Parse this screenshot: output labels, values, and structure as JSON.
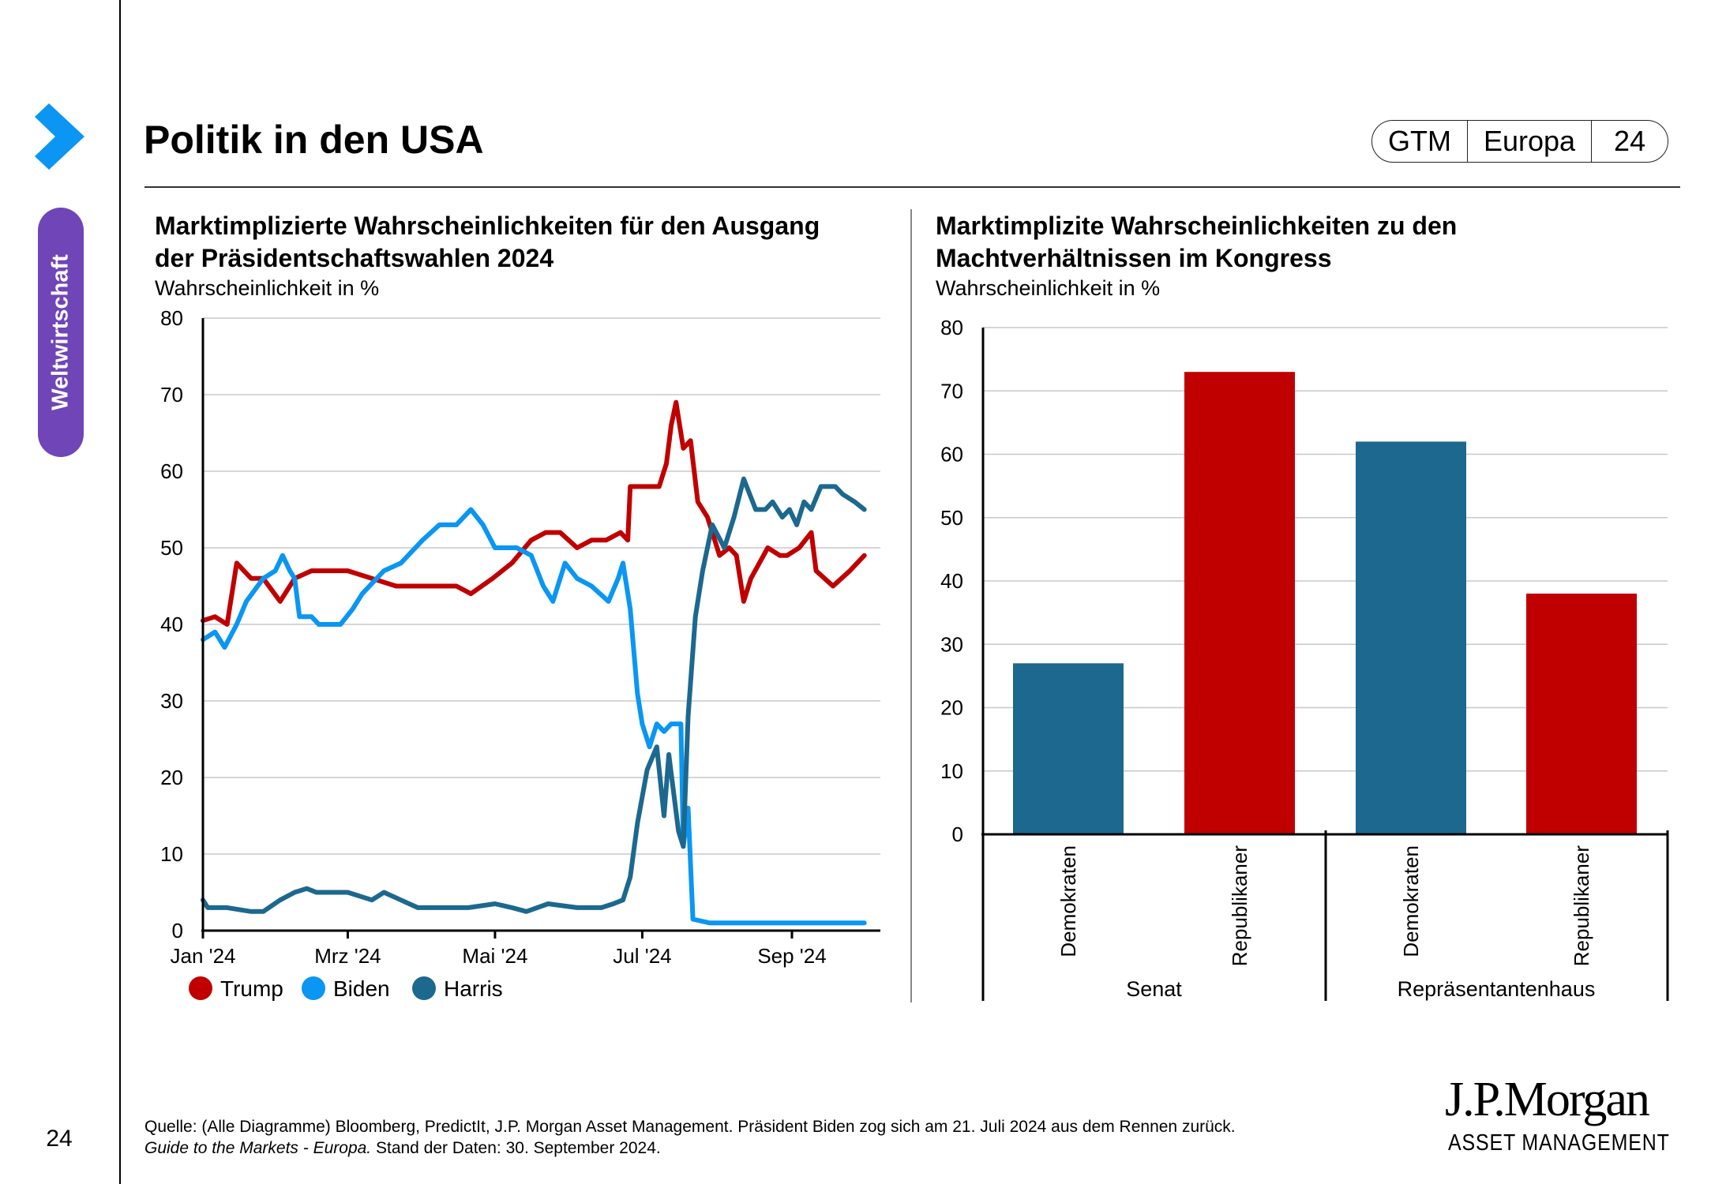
{
  "header": {
    "title": "Politik in den USA",
    "badge": [
      "GTM",
      "Europa",
      "24"
    ]
  },
  "sidebar": {
    "section_label": "Weltwirtschaft",
    "page_number": "24",
    "chevron_color": "#0a96f2",
    "pill_color": "#6f45b8"
  },
  "footer": {
    "source": "Quelle: (Alle Diagramme) Bloomberg, PredictIt, J.P. Morgan Asset Management. Präsident Biden zog sich am 21. Juli 2024 aus dem Rennen zurück.",
    "guide_italic": "Guide to the Markets - Europa.",
    "date_note": " Stand der Daten: 30. September 2024."
  },
  "logo": {
    "name": "J.P.Morgan",
    "sub": "ASSET MANAGEMENT"
  },
  "chart_data": [
    {
      "type": "line",
      "title": "Marktimplizierte Wahrscheinlichkeiten für den Ausgang der Präsidentschaftswahlen 2024",
      "title_lines": [
        "Marktimplizierte Wahrscheinlichkeiten für den Ausgang",
        "der Präsidentschaftswahlen 2024"
      ],
      "ylabel": "Wahrscheinlichkeit in %",
      "xlabel": "",
      "x_unit": "days since 1 Jan 2024",
      "xlim": [
        0,
        280
      ],
      "ylim": [
        0,
        80
      ],
      "yticks": [
        0,
        10,
        20,
        30,
        40,
        50,
        60,
        70,
        80
      ],
      "xticks": [
        {
          "day": 0,
          "label": "Jan '24"
        },
        {
          "day": 60,
          "label": "Mrz '24"
        },
        {
          "day": 121,
          "label": "Mai '24"
        },
        {
          "day": 182,
          "label": "Jul '24"
        },
        {
          "day": 244,
          "label": "Sep '24"
        }
      ],
      "grid": true,
      "legend_position": "bottom-left",
      "series": [
        {
          "name": "Trump",
          "color": "#c00000",
          "x": [
            0,
            5,
            10,
            14,
            20,
            25,
            32,
            38,
            45,
            52,
            60,
            70,
            80,
            90,
            95,
            105,
            111,
            120,
            128,
            136,
            142,
            148,
            155,
            161,
            167,
            173,
            176,
            177,
            183,
            189,
            192,
            194,
            196,
            199,
            202,
            205,
            209,
            214,
            218,
            221,
            224,
            227,
            234,
            239,
            242,
            247,
            252,
            254,
            261,
            268,
            274
          ],
          "y": [
            40.5,
            41,
            40,
            48,
            46,
            46,
            43,
            46,
            47,
            47,
            47,
            46,
            45,
            45,
            45,
            45,
            44,
            46,
            48,
            51,
            52,
            52,
            50,
            51,
            51,
            52,
            51,
            58,
            58,
            58,
            61,
            66,
            69,
            63,
            64,
            56,
            54,
            49,
            50,
            49,
            43,
            46,
            50,
            49,
            49,
            50,
            52,
            47,
            45,
            47,
            49
          ]
        },
        {
          "name": "Biden",
          "color": "#0a96f2",
          "x": [
            0,
            5,
            9,
            14,
            18,
            25,
            30,
            33,
            36,
            38,
            40,
            45,
            48,
            57,
            62,
            66,
            75,
            82,
            91,
            98,
            105,
            111,
            116,
            121,
            126,
            130,
            136,
            141,
            145,
            150,
            155,
            161,
            168,
            172,
            174,
            177,
            180,
            182,
            185,
            188,
            191,
            194,
            198,
            199,
            201,
            203,
            210,
            230,
            250,
            274
          ],
          "y": [
            38,
            39,
            37,
            40,
            43,
            46,
            47,
            49,
            47,
            46,
            41,
            41,
            40,
            40,
            42,
            44,
            47,
            48,
            51,
            53,
            53,
            55,
            53,
            50,
            50,
            50,
            49,
            45,
            43,
            48,
            46,
            45,
            43,
            46,
            48,
            42,
            31,
            27,
            24,
            27,
            26,
            27,
            27,
            11,
            16,
            1.5,
            1,
            1,
            1,
            1
          ]
        },
        {
          "name": "Harris",
          "color": "#1c688f",
          "x": [
            0,
            2,
            10,
            20,
            25,
            32,
            38,
            43,
            47,
            52,
            60,
            70,
            75,
            82,
            89,
            100,
            110,
            121,
            128,
            134,
            143,
            155,
            165,
            170,
            174,
            177,
            180,
            184,
            188,
            191,
            193,
            197,
            199,
            201,
            204,
            207,
            211,
            216,
            220,
            224,
            229,
            233,
            236,
            240,
            243,
            246,
            249,
            252,
            256,
            262,
            265,
            270,
            274
          ],
          "y": [
            4,
            3,
            3,
            2.5,
            2.5,
            4,
            5,
            5.5,
            5,
            5,
            5,
            4,
            5,
            4,
            3,
            3,
            3,
            3.5,
            3,
            2.5,
            3.5,
            3,
            3,
            3.5,
            4,
            7,
            14,
            21,
            24,
            15,
            23,
            13,
            11,
            28,
            41,
            47,
            53,
            50,
            54,
            59,
            55,
            55,
            56,
            54,
            55,
            53,
            56,
            55,
            58,
            58,
            57,
            56,
            55
          ]
        }
      ]
    },
    {
      "type": "bar",
      "title": "Marktimplizite Wahrscheinlichkeiten zu den Machtverhältnissen im Kongress",
      "title_lines": [
        "Marktimplizite Wahrscheinlichkeiten zu den",
        "Machtverhältnissen im Kongress"
      ],
      "ylabel": "Wahrscheinlichkeit in %",
      "xlabel": "",
      "ylim": [
        0,
        80
      ],
      "yticks": [
        0,
        10,
        20,
        30,
        40,
        50,
        60,
        70,
        80
      ],
      "grid": true,
      "groups": [
        {
          "label": "Senat",
          "bars": [
            {
              "label": "Demokraten",
              "value": 27,
              "color": "#1c688f"
            },
            {
              "label": "Republikaner",
              "value": 73,
              "color": "#c00000"
            }
          ]
        },
        {
          "label": "Repräsentantenhaus",
          "bars": [
            {
              "label": "Demokraten",
              "value": 62,
              "color": "#1c688f"
            },
            {
              "label": "Republikaner",
              "value": 38,
              "color": "#c00000"
            }
          ]
        }
      ]
    }
  ]
}
